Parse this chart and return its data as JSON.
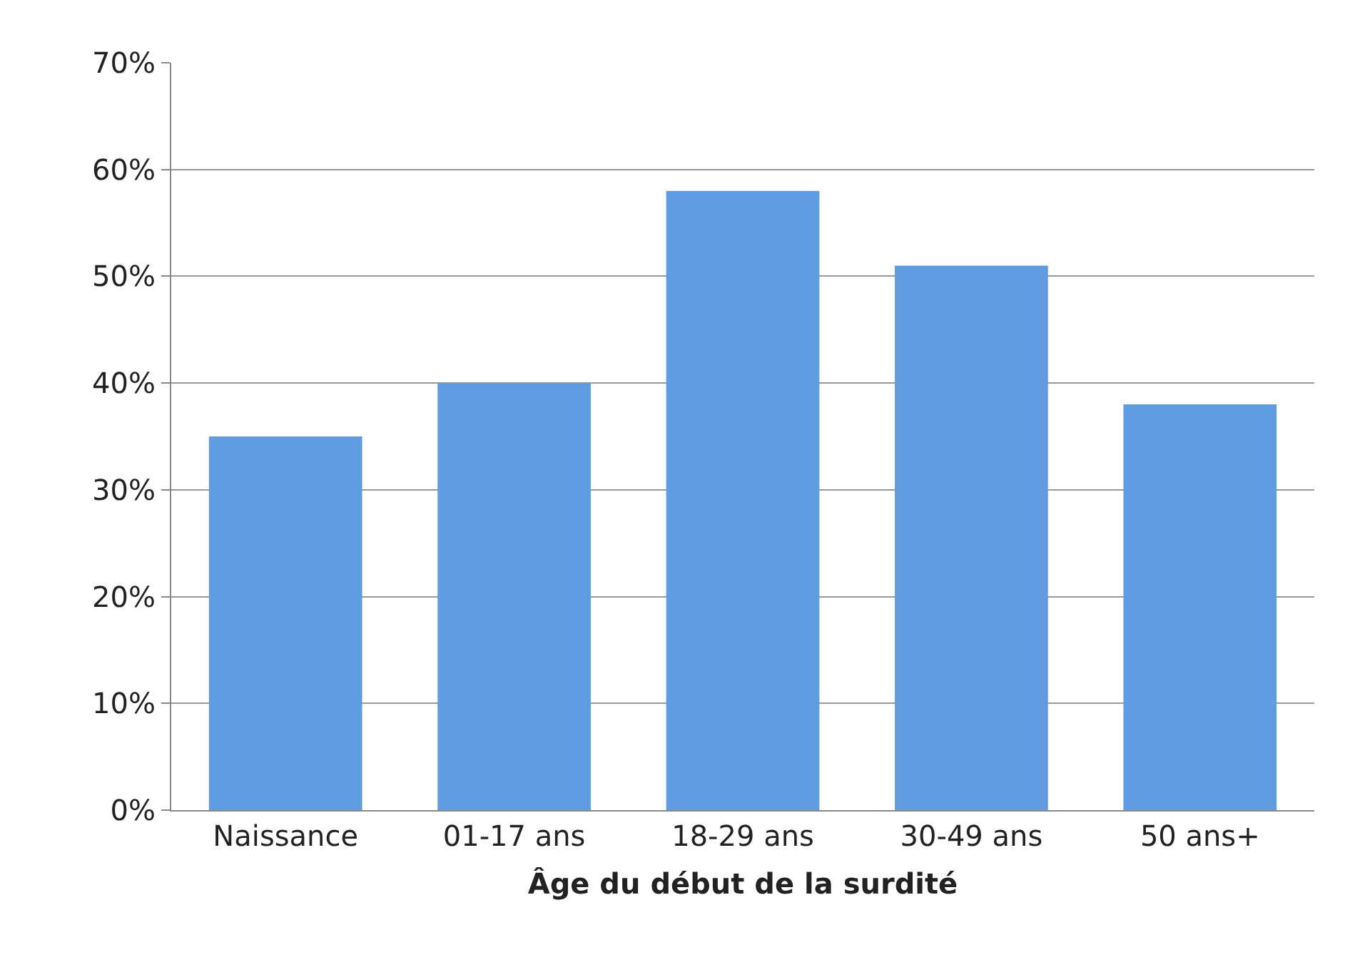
{
  "chart_data": {
    "type": "bar",
    "xlabel": "Âge du début de la surdité",
    "categories": [
      "Naissance",
      "01-17 ans",
      "18-29 ans",
      "30-49 ans",
      "50 ans+"
    ],
    "values": [
      35,
      40,
      58,
      51,
      38
    ],
    "color": "#5f9be0",
    "ylim": [
      0,
      70
    ],
    "yticks": [
      {
        "value": 0,
        "label": "0%"
      },
      {
        "value": 10,
        "label": "10%"
      },
      {
        "value": 20,
        "label": "20%"
      },
      {
        "value": 30,
        "label": "30%"
      },
      {
        "value": 40,
        "label": "40%"
      },
      {
        "value": 50,
        "label": "50%"
      },
      {
        "value": 60,
        "label": "60%"
      },
      {
        "value": 70,
        "label": "70%"
      }
    ],
    "grid": "y",
    "legend": false
  }
}
